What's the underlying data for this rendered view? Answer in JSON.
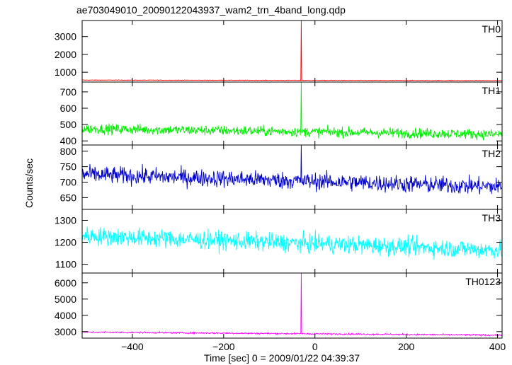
{
  "chart_data": {
    "type": "line",
    "title": "ae703049010_20090122043937_wam2_trn_4band_long.qdp",
    "xlabel": "Time [sec] 0 = 2009/01/22 04:39:37",
    "ylabel": "Counts/sec",
    "xlim": [
      -510,
      410
    ],
    "x_ticks": [
      -400,
      -200,
      0,
      200,
      400
    ],
    "x_tick_labels": [
      "−400",
      "−200",
      "0",
      "200",
      "400"
    ],
    "burst_time": -30,
    "panels": [
      {
        "name": "TH0",
        "color": "#ff0000",
        "ylim": [
          450,
          3900
        ],
        "y_ticks": [
          1000,
          2000,
          3000
        ],
        "baseline_start": 560,
        "baseline_end": 530,
        "noise": 12,
        "spike_peak": 3900
      },
      {
        "name": "TH1",
        "color": "#00ee00",
        "ylim": [
          375,
          760
        ],
        "y_ticks": [
          400,
          500,
          600,
          700
        ],
        "baseline_start": 475,
        "baseline_end": 440,
        "noise": 22,
        "spike_peak": 760
      },
      {
        "name": "TH2",
        "color": "#0000cc",
        "ylim": [
          612,
          820
        ],
        "y_ticks": [
          650,
          700,
          750,
          800
        ],
        "baseline_start": 725,
        "baseline_end": 685,
        "noise": 20,
        "spike_peak": 820
      },
      {
        "name": "TH3",
        "color": "#00ffff",
        "ylim": [
          1060,
          1350
        ],
        "y_ticks": [
          1100,
          1200,
          1300
        ],
        "baseline_start": 1230,
        "baseline_end": 1165,
        "noise": 30,
        "spike_peak": 1200
      },
      {
        "name": "TH0123",
        "color": "#ff00ff",
        "ylim": [
          2600,
          6600
        ],
        "y_ticks": [
          3000,
          4000,
          5000,
          6000
        ],
        "baseline_start": 2970,
        "baseline_end": 2780,
        "noise": 35,
        "spike_peak": 6600
      }
    ]
  }
}
